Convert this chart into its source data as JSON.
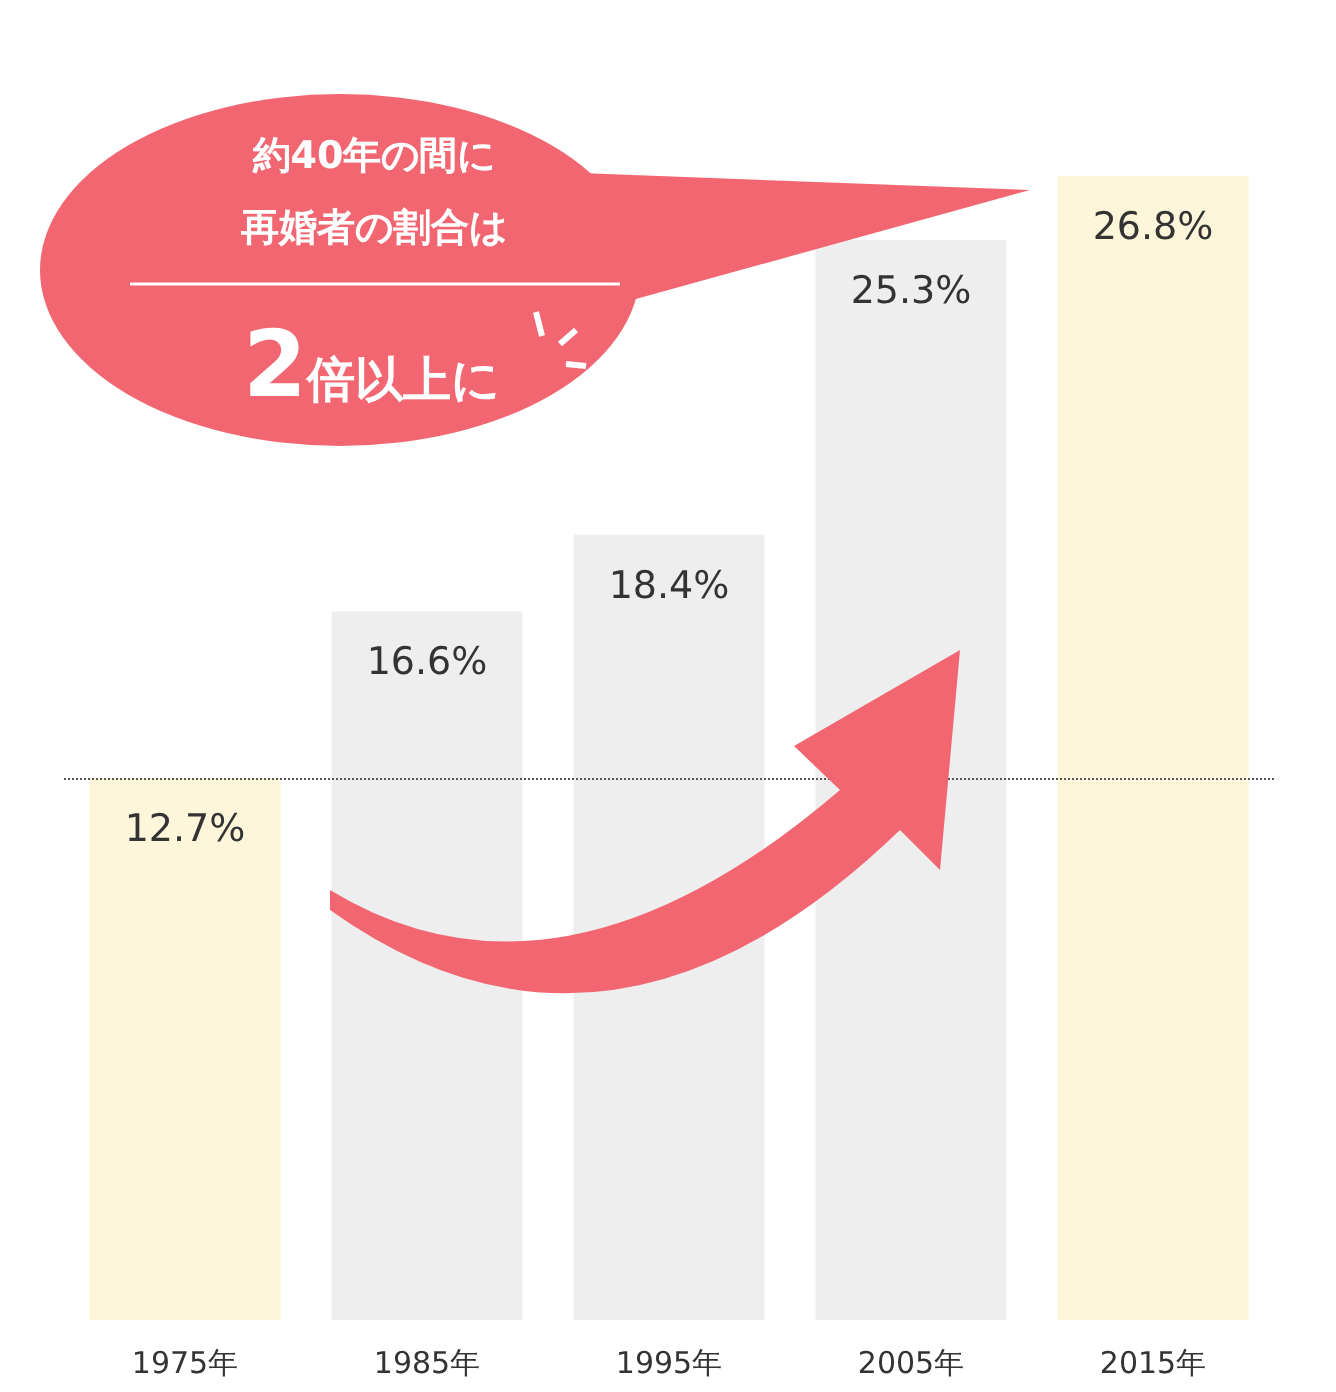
{
  "chart_data": {
    "type": "bar",
    "categories": [
      "1975年",
      "1985年",
      "1995年",
      "2005年",
      "2015年"
    ],
    "values": [
      12.7,
      16.6,
      18.4,
      25.3,
      26.8
    ],
    "colors": [
      "#fdf6da",
      "#eeeeee",
      "#eeeeee",
      "#eeeeee",
      "#fdf6da"
    ],
    "value_labels": [
      "12.7%",
      "16.6%",
      "18.4%",
      "25.3%",
      "26.8%"
    ],
    "ref_lines": [
      {
        "axis": "y",
        "value": 12.7,
        "color": "#555555",
        "line_style": "dotted"
      }
    ],
    "annotations": [
      "約40年の間に",
      "再婚者の割合は",
      "2倍以上に"
    ],
    "grid": false
  }
}
